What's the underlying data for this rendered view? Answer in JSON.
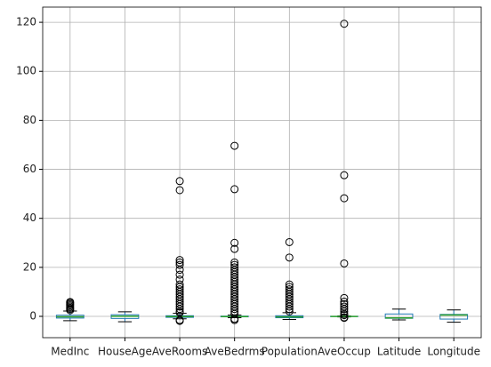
{
  "chart_data": {
    "type": "box",
    "categories": [
      "MedInc",
      "HouseAge",
      "AveRooms",
      "AveBedrms",
      "Population",
      "AveOccup",
      "Latitude",
      "Longitude"
    ],
    "boxes": [
      {
        "low": -1.77,
        "q1": -0.69,
        "median": -0.18,
        "q3": 0.46,
        "high": 2.18,
        "outliers": [
          2.5,
          3,
          3.5,
          4,
          4.5,
          5,
          5.5,
          5.86
        ]
      },
      {
        "low": -2.2,
        "q1": -0.85,
        "median": 0.03,
        "q3": 0.66,
        "high": 1.86,
        "outliers": []
      },
      {
        "low": -1.0,
        "q1": -0.4,
        "median": -0.08,
        "q3": 0.26,
        "high": 1.25,
        "outliers": [
          -1.85,
          -1.5,
          1.5,
          2,
          3,
          4,
          5,
          6,
          7,
          8,
          9,
          10,
          11,
          12,
          13,
          15,
          17,
          19,
          21,
          22,
          23,
          51.5,
          55.2
        ]
      },
      {
        "low": -0.55,
        "q1": -0.2,
        "median": -0.1,
        "q3": 0.1,
        "high": 0.5,
        "outliers": [
          -1.5,
          -1,
          1,
          2,
          3,
          4,
          5,
          6,
          7,
          8,
          9,
          10,
          11,
          12,
          13,
          14,
          15,
          16,
          17,
          18,
          19,
          20,
          21,
          22,
          27.5,
          30,
          51.9,
          69.6
        ]
      },
      {
        "low": -1.26,
        "q1": -0.56,
        "median": -0.23,
        "q3": 0.26,
        "high": 1.5,
        "outliers": [
          2,
          3,
          4,
          5,
          6,
          7,
          8,
          9,
          10,
          11,
          12,
          13,
          24,
          30.3
        ]
      },
      {
        "low": -0.23,
        "q1": -0.06,
        "median": -0.02,
        "q3": 0.02,
        "high": 0.15,
        "outliers": [
          -0.6,
          -0.4,
          0.5,
          1,
          2,
          3,
          4,
          5,
          6,
          7.5,
          21.6,
          48.2,
          57.6,
          119.4
        ]
      },
      {
        "low": -1.45,
        "q1": -0.8,
        "median": -0.64,
        "q3": 0.97,
        "high": 2.96,
        "outliers": []
      },
      {
        "low": -2.39,
        "q1": -1.11,
        "median": 0.54,
        "q3": 0.78,
        "high": 2.63,
        "outliers": []
      }
    ],
    "box_color": "#1f77b4",
    "median_color": "#2ca02c",
    "cap_color": "#000000",
    "ylim": [
      -8.7,
      126.2
    ],
    "yticks": [
      0,
      20,
      40,
      60,
      80,
      100,
      120
    ],
    "grid": true
  }
}
